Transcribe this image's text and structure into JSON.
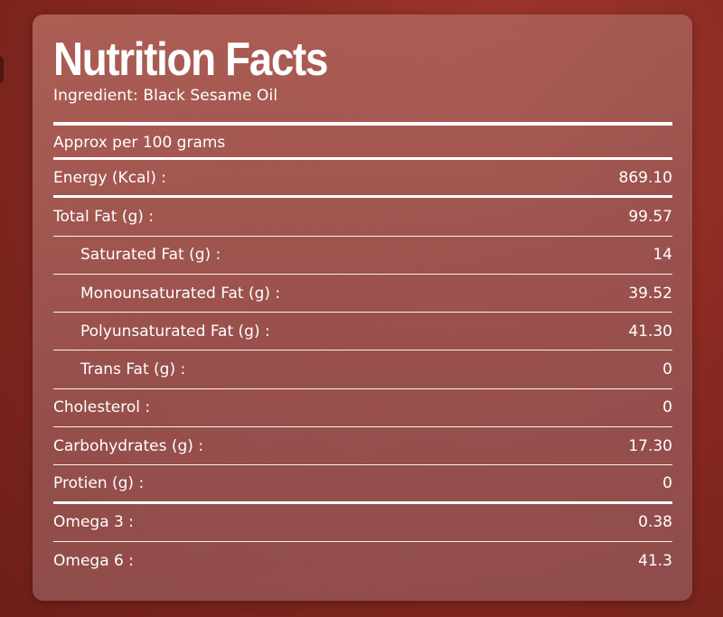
{
  "panel": {
    "title": "Nutrition Facts",
    "subtitle": "Ingredient: Black Sesame Oil",
    "serving": "Approx per 100 grams"
  },
  "nutrients": [
    {
      "label": "Energy (Kcal) :",
      "value": "869.10",
      "indent": false
    },
    {
      "label": "Total Fat (g) :",
      "value": "99.57",
      "indent": false
    },
    {
      "label": "Saturated Fat (g) :",
      "value": "14",
      "indent": true
    },
    {
      "label": "Monounsaturated Fat (g) :",
      "value": "39.52",
      "indent": true
    },
    {
      "label": "Polyunsaturated Fat (g) :",
      "value": "41.30",
      "indent": true
    },
    {
      "label": "Trans Fat (g) :",
      "value": "0",
      "indent": true
    },
    {
      "label": "Cholesterol :",
      "value": "0",
      "indent": false
    },
    {
      "label": "Carbohydrates (g) :",
      "value": "17.30",
      "indent": false
    },
    {
      "label": "Protien (g) :",
      "value": "0",
      "indent": false
    },
    {
      "label": "Omega 3 :",
      "value": "0.38",
      "indent": false
    },
    {
      "label": "Omega 6 :",
      "value": "41.3",
      "indent": false
    }
  ],
  "colors": {
    "background": "#8a2a22",
    "panel": "#a8605a",
    "text": "#ffffff"
  }
}
